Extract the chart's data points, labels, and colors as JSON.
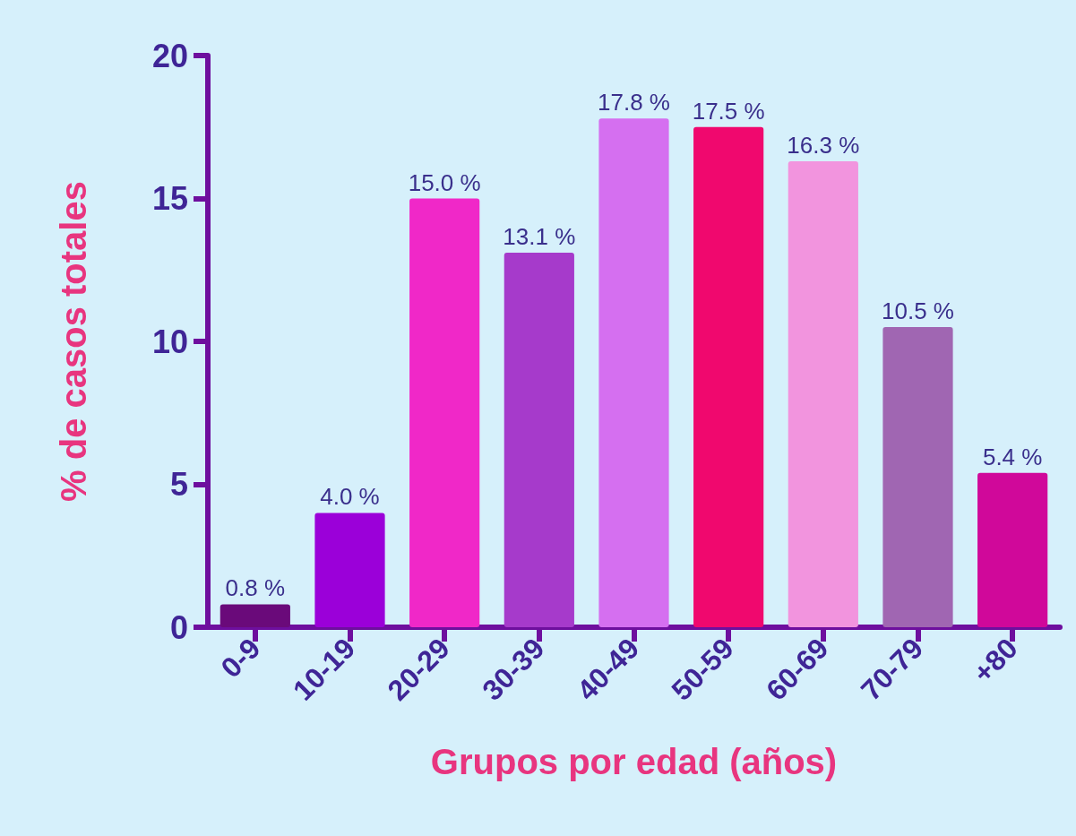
{
  "chart_data": {
    "type": "bar",
    "xlabel": "Grupos por edad (años)",
    "ylabel": "% de casos totales",
    "categories": [
      "0-9",
      "10-19",
      "20-29",
      "30-39",
      "40-49",
      "50-59",
      "60-69",
      "70-79",
      "+80"
    ],
    "values": [
      0.8,
      4.0,
      15.0,
      13.1,
      17.8,
      17.5,
      16.3,
      10.5,
      5.4
    ],
    "colors": [
      "#6a0a7a",
      "#9b00d9",
      "#f028c8",
      "#a63acb",
      "#d56ff0",
      "#f0086e",
      "#f294de",
      "#a066b2",
      "#d0089a"
    ],
    "value_labels": [
      "0.8 %",
      "4.0 %",
      "15.0 %",
      "13.1 %",
      "17.8 %",
      "17.5 %",
      "16.3 %",
      "10.5 %",
      "5.4 %"
    ],
    "ylim": [
      0,
      20
    ],
    "yticks": [
      0,
      5,
      10,
      15,
      20
    ]
  }
}
